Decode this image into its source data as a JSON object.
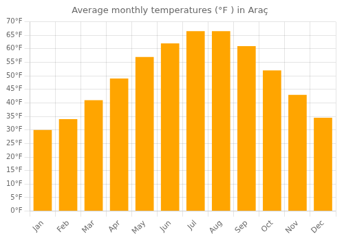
{
  "chart_data": {
    "type": "bar",
    "title": "Average monthly temperatures (°F ) in Araç",
    "categories": [
      "Jan",
      "Feb",
      "Mar",
      "Apr",
      "May",
      "Jun",
      "Jul",
      "Aug",
      "Sep",
      "Oct",
      "Nov",
      "Dec"
    ],
    "values": [
      30,
      34,
      41,
      49,
      57,
      62,
      66.5,
      66.5,
      61,
      52,
      43,
      34.5
    ],
    "color": "#FFA500",
    "ylim": [
      0,
      70
    ],
    "yticks": [
      {
        "value": 0,
        "label": "0°F"
      },
      {
        "value": 5,
        "label": "5°F"
      },
      {
        "value": 10,
        "label": "10°F"
      },
      {
        "value": 15,
        "label": "15°F"
      },
      {
        "value": 20,
        "label": "20°F"
      },
      {
        "value": 25,
        "label": "25°F"
      },
      {
        "value": 30,
        "label": "30°F"
      },
      {
        "value": 35,
        "label": "35°F"
      },
      {
        "value": 40,
        "label": "40°F"
      },
      {
        "value": 45,
        "label": "45°F"
      },
      {
        "value": 50,
        "label": "50°F"
      },
      {
        "value": 55,
        "label": "55°F"
      },
      {
        "value": 60,
        "label": "60°F"
      },
      {
        "value": 65,
        "label": "65°F"
      },
      {
        "value": 70,
        "label": "70°F"
      }
    ],
    "grid": true
  }
}
